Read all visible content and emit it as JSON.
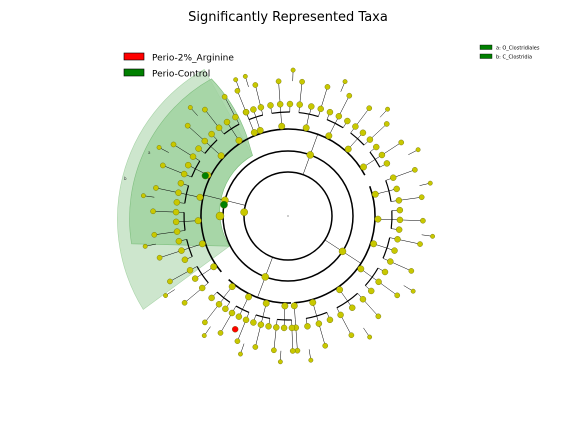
{
  "figure": {
    "title": "Significantly Represented Taxa"
  },
  "legend": {
    "groups": [
      {
        "label": "Perio-2%_Arginine",
        "color": "#ff0000"
      },
      {
        "label": "Perio-Control",
        "color": "#008000"
      }
    ],
    "clades": [
      {
        "label": "a: O_Clostridiales",
        "color": "#008000"
      },
      {
        "label": "b: C_Clostridia",
        "color": "#008000"
      }
    ]
  },
  "clade_markers": [
    "a",
    "b"
  ],
  "colors": {
    "node_default": "#c8c800",
    "node_red": "#ff0000",
    "node_green": "#008000",
    "highlight_outer": "#cde6cd",
    "highlight_inner": "#a0d2a0",
    "highlight_edge": "#7fbf7f"
  }
}
